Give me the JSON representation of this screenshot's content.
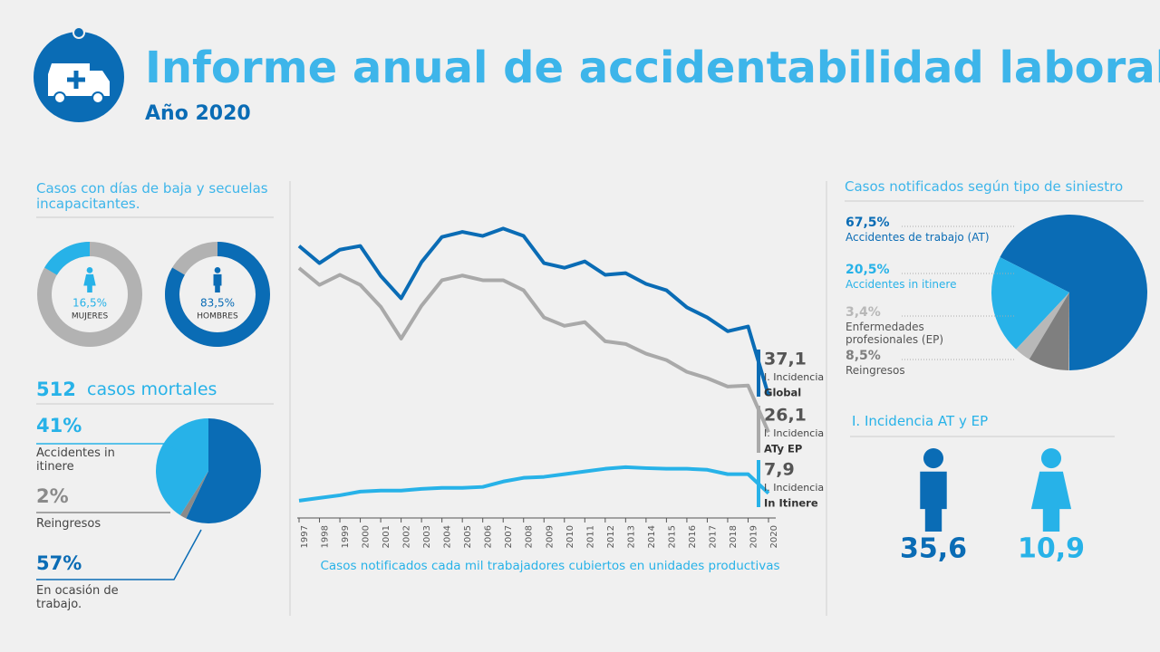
{
  "header": {
    "title": "Informe anual de accidentabilidad laboral",
    "subtitle": "Año 2020"
  },
  "chart_data": [
    {
      "type": "donut",
      "title": "Casos con días de baja y secuelas incapacitantes.",
      "categories": [
        "MUJERES",
        "HOMBRES"
      ],
      "values": [
        16.5,
        83.5
      ],
      "value_labels": [
        "16,5%",
        "83,5%"
      ],
      "colors": [
        "#27b2e8",
        "#0a6cb5"
      ],
      "rest_color": "#b2b2b2"
    },
    {
      "type": "pie",
      "total": 512,
      "title": "casos mortales",
      "direction": "clockwise",
      "categories": [
        "Accidentes in itinere",
        "Reingresos",
        "En ocasión de trabajo."
      ],
      "values": [
        41,
        2,
        57
      ],
      "value_labels": [
        "41%",
        "2%",
        "57%"
      ],
      "colors": [
        "#27b2e8",
        "#8a8a8a",
        "#0a6cb5"
      ]
    },
    {
      "type": "line",
      "xlabel": "Casos notificados cada mil trabajadores cubiertos en unidades productivas",
      "x": [
        1997,
        1998,
        1999,
        2000,
        2001,
        2002,
        2003,
        2004,
        2005,
        2006,
        2007,
        2008,
        2009,
        2010,
        2011,
        2012,
        2013,
        2014,
        2015,
        2016,
        2017,
        2018,
        2019,
        2020
      ],
      "xlim": [
        1997,
        2020
      ],
      "ylim": [
        0,
        95
      ],
      "end_caption": "I. Incidencia",
      "series": [
        {
          "name": "Global",
          "color": "#0a6cb5",
          "end_label": "37,1",
          "values": [
            81.6,
            76.5,
            80.5,
            81.6,
            72.7,
            66.0,
            76.8,
            84.3,
            85.8,
            84.6,
            86.8,
            84.6,
            76.5,
            75.1,
            77.0,
            73.0,
            73.5,
            70.3,
            68.4,
            63.3,
            60.3,
            56.2,
            57.6,
            37.1
          ]
        },
        {
          "name": "ATy EP",
          "color": "#a9a9a9",
          "end_label": "26,1",
          "values": [
            75.0,
            70.0,
            73.0,
            70.0,
            63.5,
            54.0,
            63.8,
            71.4,
            72.8,
            71.4,
            71.4,
            68.4,
            60.3,
            57.8,
            58.9,
            53.2,
            52.4,
            49.5,
            47.6,
            44.1,
            42.2,
            39.7,
            40.0,
            26.1
          ]
        },
        {
          "name": "In Itinere",
          "color": "#27b2e8",
          "end_label": "7,9",
          "values": [
            5.7,
            6.5,
            7.3,
            8.4,
            8.7,
            8.7,
            9.2,
            9.5,
            9.5,
            9.8,
            11.4,
            12.5,
            12.8,
            13.6,
            14.4,
            15.2,
            15.7,
            15.4,
            15.2,
            15.2,
            14.9,
            13.6,
            13.6,
            7.9
          ]
        }
      ]
    },
    {
      "type": "pie",
      "title": "Casos notificados según tipo de siniestro",
      "direction": "counterclockwise",
      "categories": [
        "Accidentes de trabajo (AT)",
        "Accidentes in itinere",
        "Enfermedades profesionales (EP)",
        "Reingresos"
      ],
      "values": [
        67.5,
        20.5,
        3.4,
        8.5
      ],
      "value_labels": [
        "67,5%",
        "20,5%",
        "3,4%",
        "8,5%"
      ],
      "colors": [
        "#0a6cb5",
        "#27b2e8",
        "#b8b8b8",
        "#7f7f7f"
      ]
    },
    {
      "type": "pictogram",
      "title": "I. Incidencia AT y EP",
      "values": [
        35.6,
        10.9
      ],
      "value_labels": [
        "35,6",
        "10,9"
      ],
      "colors": [
        "#0a6cb5",
        "#27b2e8"
      ]
    }
  ]
}
